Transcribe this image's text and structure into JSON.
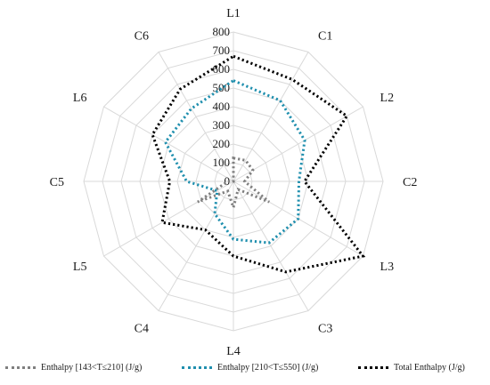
{
  "chart_data": {
    "type": "radar",
    "categories": [
      "L1",
      "C1",
      "L2",
      "C2",
      "L3",
      "C3",
      "L4",
      "C4",
      "L5",
      "C5",
      "L6",
      "C6"
    ],
    "radial_ticks": [
      "0",
      "100",
      "200",
      "300",
      "400",
      "500",
      "600",
      "700",
      "800"
    ],
    "rlim": [
      0,
      800
    ],
    "grid": true,
    "legend_position": "bottom",
    "series": [
      {
        "name": "Enthalpy [143<T≤210] (J/g)",
        "color": "#7f7f7f",
        "values": [
          125,
          130,
          120,
          60,
          220,
          50,
          140,
          60,
          220,
          30,
          0,
          0
        ]
      },
      {
        "name": "Enthalpy [210<T≤550] (J/g)",
        "color": "#1f8fae",
        "values": [
          540,
          500,
          440,
          350,
          400,
          380,
          310,
          200,
          100,
          250,
          420,
          450
        ]
      },
      {
        "name": "Total Enthalpy  (J/g)",
        "color": "#000000",
        "values": [
          670,
          630,
          700,
          380,
          800,
          560,
          400,
          300,
          440,
          340,
          500,
          570
        ]
      }
    ]
  }
}
